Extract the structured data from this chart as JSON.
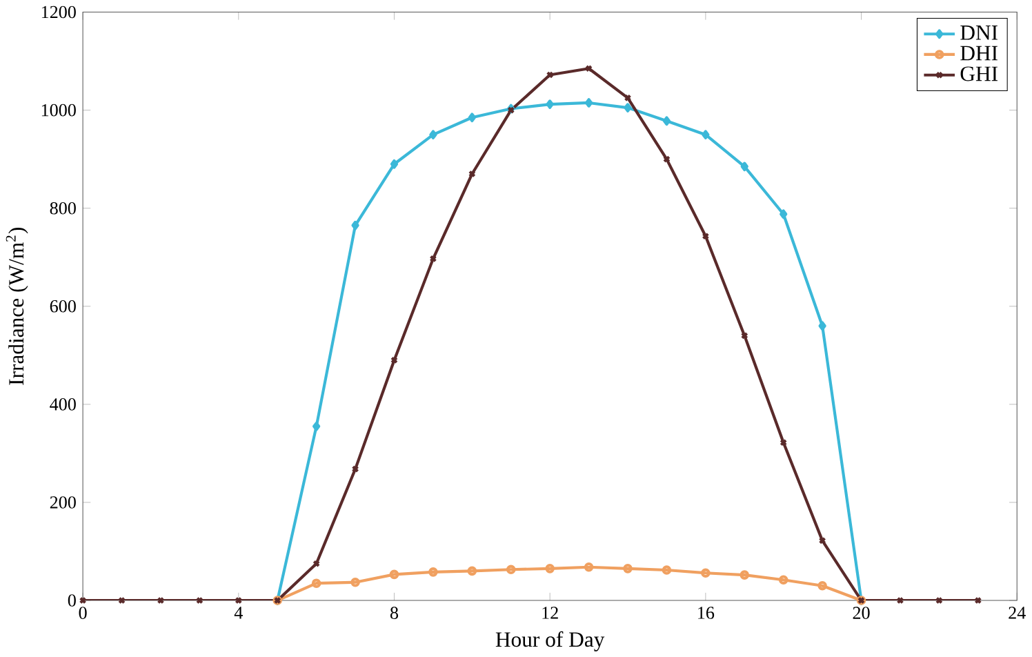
{
  "chart_data": {
    "type": "line",
    "xlabel": "Hour of Day",
    "ylabel": "Irradiance (W/m$^{2}$)",
    "x": [
      0,
      1,
      2,
      3,
      4,
      5,
      6,
      7,
      8,
      9,
      10,
      11,
      12,
      13,
      14,
      15,
      16,
      17,
      18,
      19,
      20,
      21,
      22,
      23
    ],
    "series": [
      {
        "name": "DNI",
        "color": "#3bb8d8",
        "marker": "diamond",
        "values": [
          null,
          null,
          null,
          null,
          null,
          0,
          355,
          765,
          890,
          950,
          985,
          1003,
          1012,
          1015,
          1005,
          978,
          950,
          885,
          788,
          560,
          0,
          null,
          null,
          null
        ]
      },
      {
        "name": "DHI",
        "color": "#f0a060",
        "marker": "circle",
        "values": [
          null,
          null,
          null,
          null,
          null,
          0,
          35,
          37,
          53,
          58,
          60,
          63,
          65,
          68,
          65,
          62,
          56,
          52,
          42,
          30,
          0,
          null,
          null,
          null
        ]
      },
      {
        "name": "GHI",
        "color": "#5a2a2a",
        "marker": "cross",
        "values": [
          0,
          0,
          0,
          0,
          0,
          0,
          75,
          268,
          490,
          697,
          870,
          1000,
          1072,
          1085,
          1025,
          900,
          743,
          540,
          322,
          122,
          0,
          0,
          0,
          0
        ]
      }
    ],
    "xlim": [
      0,
      24
    ],
    "ylim": [
      0,
      1200
    ],
    "xticks": [
      0,
      4,
      8,
      12,
      16,
      20,
      24
    ],
    "yticks": [
      0,
      200,
      400,
      600,
      800,
      1000,
      1200
    ],
    "grid": false,
    "legend": "top right",
    "line_style": "solid"
  }
}
